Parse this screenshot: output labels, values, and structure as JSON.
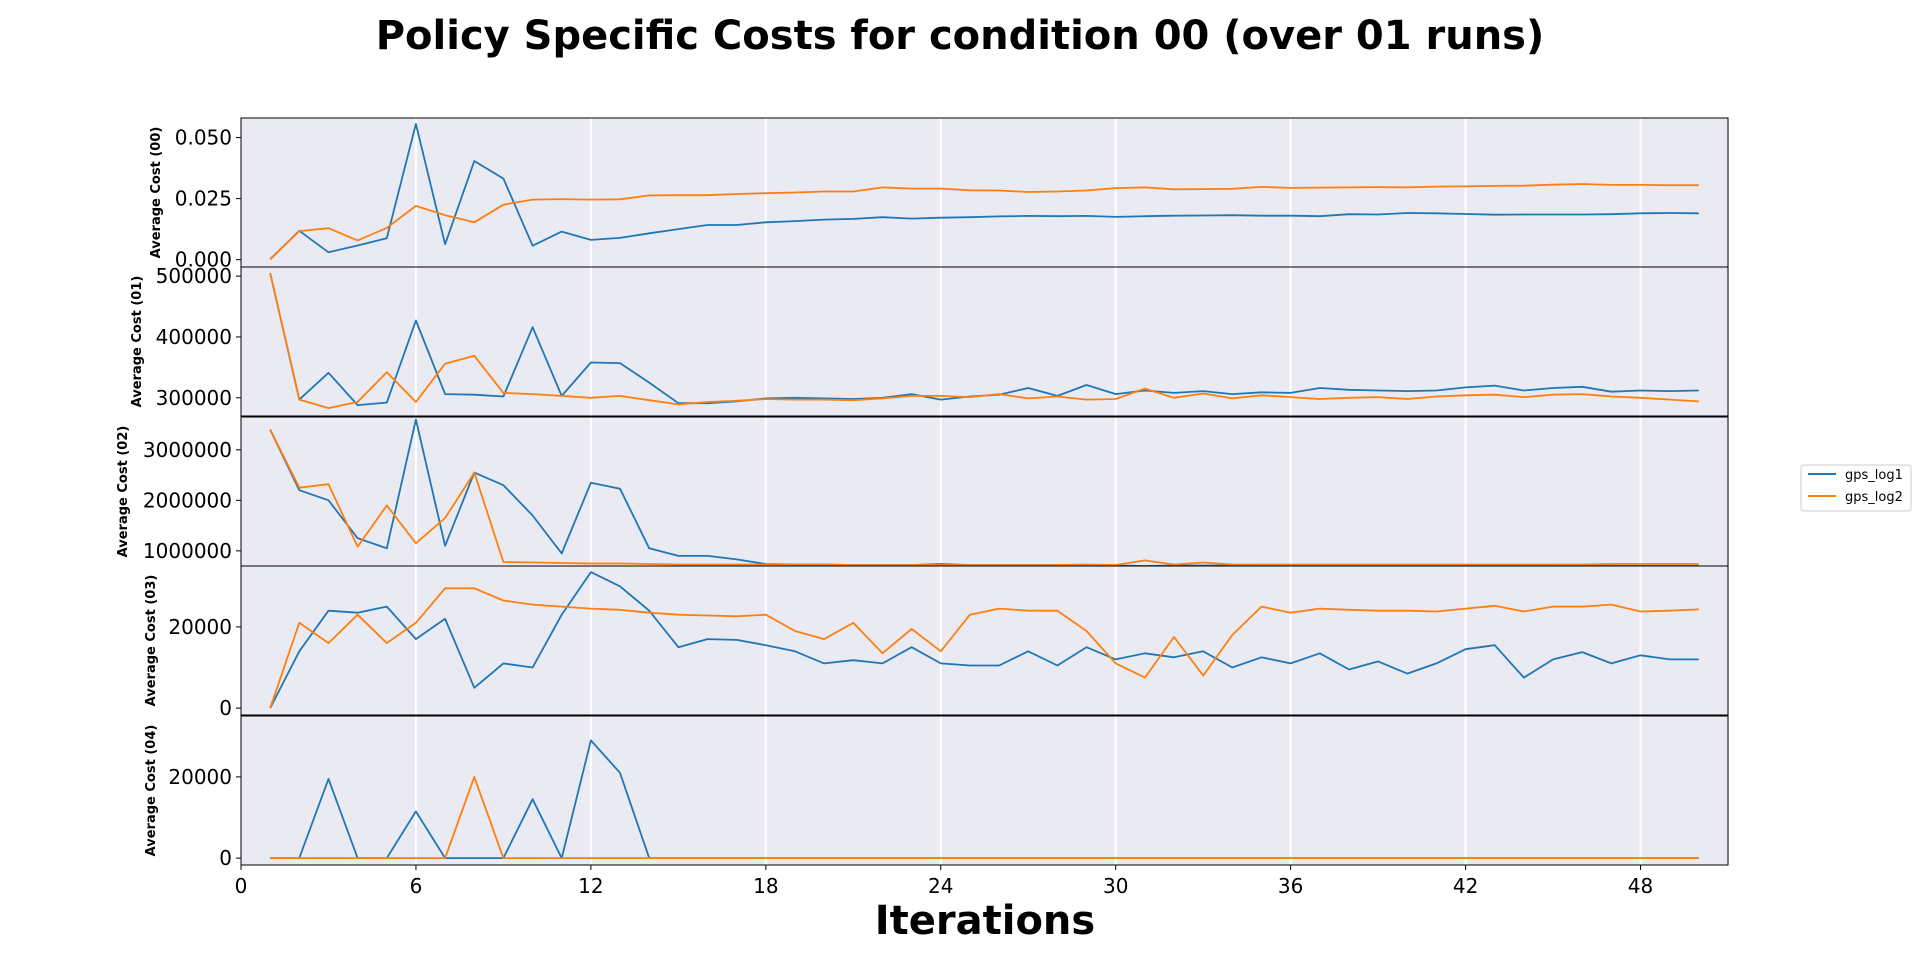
{
  "chart_data": {
    "type": "line",
    "title": "Policy Specific Costs for condition 00 (over 01 runs)",
    "xlabel": "Iterations",
    "xlim": [
      0,
      51
    ],
    "xticks": [
      0,
      6,
      12,
      18,
      24,
      30,
      36,
      42,
      48
    ],
    "x": [
      1,
      2,
      3,
      4,
      5,
      6,
      7,
      8,
      9,
      10,
      11,
      12,
      13,
      14,
      15,
      16,
      17,
      18,
      19,
      20,
      21,
      22,
      23,
      24,
      25,
      26,
      27,
      28,
      29,
      30,
      31,
      32,
      33,
      34,
      35,
      36,
      37,
      38,
      39,
      40,
      41,
      42,
      43,
      44,
      45,
      46,
      47,
      48,
      49,
      50
    ],
    "legend": {
      "placement": "right",
      "entries": [
        "gps_log1",
        "gps_log2"
      ]
    },
    "colors": {
      "gps_log1": "#1f77b4",
      "gps_log2": "#ff7f0e",
      "axes_bg": "#eaeaf2",
      "grid": "#ffffff"
    },
    "grid": "vertical",
    "panels": [
      {
        "ylabel": "Average Cost (00)",
        "ylim": [
          -0.003,
          0.058
        ],
        "yticks": [
          0,
          0.025,
          0.05
        ],
        "ytick_labels": [
          "0.000",
          "0.025",
          "0.050"
        ],
        "series": [
          {
            "name": "gps_log1",
            "values": [
              0.0002,
              0.0118,
              0.003,
              0.0058,
              0.0088,
              0.0556,
              0.0063,
              0.0404,
              0.0332,
              0.0057,
              0.0115,
              0.0081,
              0.0089,
              0.0108,
              0.0125,
              0.0142,
              0.0142,
              0.0153,
              0.0158,
              0.0164,
              0.0167,
              0.0174,
              0.0168,
              0.0172,
              0.0174,
              0.0177,
              0.0179,
              0.0178,
              0.0179,
              0.0175,
              0.0178,
              0.018,
              0.0181,
              0.0182,
              0.018,
              0.018,
              0.0178,
              0.0186,
              0.0185,
              0.0191,
              0.019,
              0.0187,
              0.0184,
              0.0185,
              0.0185,
              0.0185,
              0.0186,
              0.019,
              0.0191,
              0.019
            ]
          },
          {
            "name": "gps_log2",
            "values": [
              0.0002,
              0.0117,
              0.0129,
              0.0079,
              0.013,
              0.022,
              0.0182,
              0.0153,
              0.0225,
              0.0246,
              0.0248,
              0.0246,
              0.0247,
              0.0263,
              0.0264,
              0.0264,
              0.0269,
              0.0272,
              0.0275,
              0.0279,
              0.0279,
              0.0296,
              0.0291,
              0.0291,
              0.0284,
              0.0283,
              0.0277,
              0.0279,
              0.0283,
              0.0293,
              0.0296,
              0.0288,
              0.0289,
              0.029,
              0.0298,
              0.0294,
              0.0295,
              0.0296,
              0.0297,
              0.0296,
              0.0299,
              0.03,
              0.0302,
              0.0303,
              0.0307,
              0.031,
              0.0306,
              0.0306,
              0.0305,
              0.0305
            ]
          }
        ]
      },
      {
        "ylabel": "Average Cost (01)",
        "ylim": [
          270000,
          515000
        ],
        "yticks": [
          300000,
          400000,
          500000
        ],
        "ytick_labels": [
          "300000",
          "400000",
          "500000"
        ],
        "series": [
          {
            "name": "gps_log1",
            "values": [
              505000,
              297000,
              341000,
              288000,
              292000,
              427000,
              306000,
              305000,
              302000,
              416000,
              303000,
              358000,
              357000,
              325000,
              291000,
              291000,
              294000,
              299000,
              300000,
              299000,
              298000,
              300000,
              306000,
              297000,
              302000,
              305000,
              316000,
              303000,
              321000,
              306000,
              312000,
              308000,
              311000,
              306000,
              309000,
              308000,
              316000,
              313000,
              312000,
              311000,
              312000,
              317000,
              320000,
              312000,
              316000,
              318000,
              310000,
              312000,
              311000,
              312000
            ]
          },
          {
            "name": "gps_log2",
            "values": [
              505000,
              297000,
              283000,
              293000,
              342000,
              293000,
              356000,
              369000,
              308000,
              306000,
              303000,
              300000,
              303000,
              296000,
              289000,
              293000,
              295000,
              298000,
              297000,
              297000,
              296000,
              299000,
              303000,
              303000,
              301000,
              306000,
              299000,
              302000,
              297000,
              298000,
              315000,
              300000,
              307000,
              299000,
              304000,
              301000,
              298000,
              300000,
              301000,
              298000,
              302000,
              304000,
              305000,
              301000,
              305000,
              306000,
              302000,
              300000,
              297000,
              294000
            ]
          }
        ]
      },
      {
        "ylabel": "Average Cost (02)",
        "ylim": [
          700000,
          3650000
        ],
        "yticks": [
          1000000,
          2000000,
          3000000
        ],
        "ytick_labels": [
          "1000000",
          "2000000",
          "3000000"
        ],
        "series": [
          {
            "name": "gps_log1",
            "values": [
              3400000,
              2200000,
              2000000,
              1250000,
              1050000,
              3600000,
              1100000,
              2550000,
              2300000,
              1700000,
              950000,
              2350000,
              2230000,
              1050000,
              900000,
              900000,
              830000,
              740000,
              730000,
              730000,
              720000,
              720000,
              720000,
              740000,
              720000,
              720000,
              720000,
              720000,
              720000,
              710000,
              700000,
              710000,
              710000,
              710000,
              700000,
              700000,
              700000,
              700000,
              700000,
              700000,
              700000,
              700000,
              710000,
              710000,
              700000,
              700000,
              700000,
              700000,
              700000,
              700000
            ]
          },
          {
            "name": "gps_log2",
            "values": [
              3400000,
              2250000,
              2320000,
              1080000,
              1900000,
              1150000,
              1650000,
              2550000,
              780000,
              770000,
              760000,
              750000,
              750000,
              740000,
              730000,
              730000,
              730000,
              730000,
              730000,
              730000,
              720000,
              720000,
              720000,
              720000,
              720000,
              720000,
              720000,
              720000,
              730000,
              720000,
              810000,
              730000,
              770000,
              730000,
              730000,
              730000,
              730000,
              730000,
              730000,
              730000,
              730000,
              730000,
              730000,
              730000,
              730000,
              730000,
              740000,
              740000,
              740000,
              740000
            ]
          }
        ]
      },
      {
        "ylabel": "Average Cost (03)",
        "ylim": [
          -1700,
          35000
        ],
        "yticks": [
          0,
          20000
        ],
        "ytick_labels": [
          "0",
          "20000"
        ],
        "series": [
          {
            "name": "gps_log1",
            "values": [
              0,
              14000,
              24000,
              23500,
              25000,
              17000,
              22000,
              5000,
              11000,
              10000,
              23000,
              33500,
              30000,
              24000,
              15000,
              17000,
              16800,
              15500,
              14000,
              11000,
              11800,
              11000,
              15000,
              11000,
              10500,
              10500,
              14000,
              10500,
              15000,
              12000,
              13500,
              12500,
              14000,
              10000,
              12500,
              11000,
              13500,
              9500,
              11500,
              8500,
              11000,
              14500,
              15500,
              7500,
              12000,
              13800,
              11000,
              13000,
              12000,
              12000
            ]
          },
          {
            "name": "gps_log2",
            "values": [
              0,
              21000,
              16000,
              23000,
              16000,
              21000,
              29500,
              29500,
              26500,
              25500,
              25000,
              24500,
              24200,
              23500,
              23000,
              22800,
              22600,
              23000,
              19000,
              17000,
              21000,
              13500,
              19500,
              14000,
              23000,
              24500,
              24000,
              24000,
              19000,
              11000,
              7500,
              17500,
              8000,
              18000,
              25000,
              23500,
              24500,
              24200,
              24000,
              24000,
              23800,
              24500,
              25200,
              23800,
              25000,
              25000,
              25500,
              23800,
              24000,
              24300
            ]
          }
        ]
      },
      {
        "ylabel": "Average Cost (04)",
        "ylim": [
          -1700,
          35000
        ],
        "yticks": [
          0,
          20000
        ],
        "ytick_labels": [
          "0",
          "20000"
        ],
        "series": [
          {
            "name": "gps_log1",
            "values": [
              0,
              0,
              19500,
              0,
              0,
              11500,
              0,
              0,
              0,
              14500,
              0,
              29000,
              21000,
              0,
              0,
              0,
              0,
              0,
              0,
              0,
              0,
              0,
              0,
              0,
              0,
              0,
              0,
              0,
              0,
              0,
              0,
              0,
              0,
              0,
              0,
              0,
              0,
              0,
              0,
              0,
              0,
              0,
              0,
              0,
              0,
              0,
              0,
              0,
              0,
              0
            ]
          },
          {
            "name": "gps_log2",
            "values": [
              0,
              0,
              0,
              0,
              0,
              0,
              0,
              20000,
              0,
              0,
              0,
              0,
              0,
              0,
              0,
              0,
              0,
              0,
              0,
              0,
              0,
              0,
              0,
              0,
              0,
              0,
              0,
              0,
              0,
              0,
              0,
              0,
              0,
              0,
              0,
              0,
              0,
              0,
              0,
              0,
              0,
              0,
              0,
              0,
              0,
              0,
              0,
              0,
              0,
              0
            ]
          }
        ]
      }
    ]
  }
}
